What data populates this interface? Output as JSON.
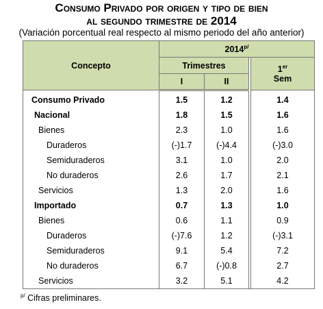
{
  "title": {
    "line1": "Consumo Privado por origen y tipo de bien",
    "line2": "al segundo trimestre de 2014",
    "subtitle": "(Variación porcentual real respecto al mismo periodo del año anterior)"
  },
  "header": {
    "concept": "Concepto",
    "year": "2014",
    "year_mark": "p/",
    "quarters": "Trimestres",
    "q1": "I",
    "q2": "II",
    "sem_number": "1",
    "sem_ordinal": "er",
    "sem": "Sem"
  },
  "table": {
    "rows": [
      [
        "Consumo Privado",
        "1.5",
        "1.2",
        "1.4"
      ],
      [
        "Nacional",
        "1.8",
        "1.5",
        "1.6"
      ],
      [
        "Bienes",
        "2.3",
        "1.0",
        "1.6"
      ],
      [
        "Duraderos",
        "(-)1.7",
        "(-)4.4",
        "(-)3.0"
      ],
      [
        "Semiduraderos",
        "3.1",
        "1.0",
        "2.0"
      ],
      [
        "No duraderos",
        "2.6",
        "1.7",
        "2.1"
      ],
      [
        "Servicios",
        "1.3",
        "2.0",
        "1.6"
      ],
      [
        "Importado",
        "0.7",
        "1.3",
        "1.0"
      ],
      [
        "Bienes",
        "0.6",
        "1.1",
        "0.9"
      ],
      [
        "Duraderos",
        "(-)7.6",
        "1.2",
        "(-)3.1"
      ],
      [
        "Semiduraderos",
        "9.1",
        "5.4",
        "7.2"
      ],
      [
        "No duraderos",
        "6.7",
        "(-)0.8",
        "2.7"
      ],
      [
        "Servicios",
        "3.2",
        "5.1",
        "4.2"
      ]
    ]
  },
  "footnote": {
    "mark": "p/",
    "text": "Cifras preliminares."
  }
}
